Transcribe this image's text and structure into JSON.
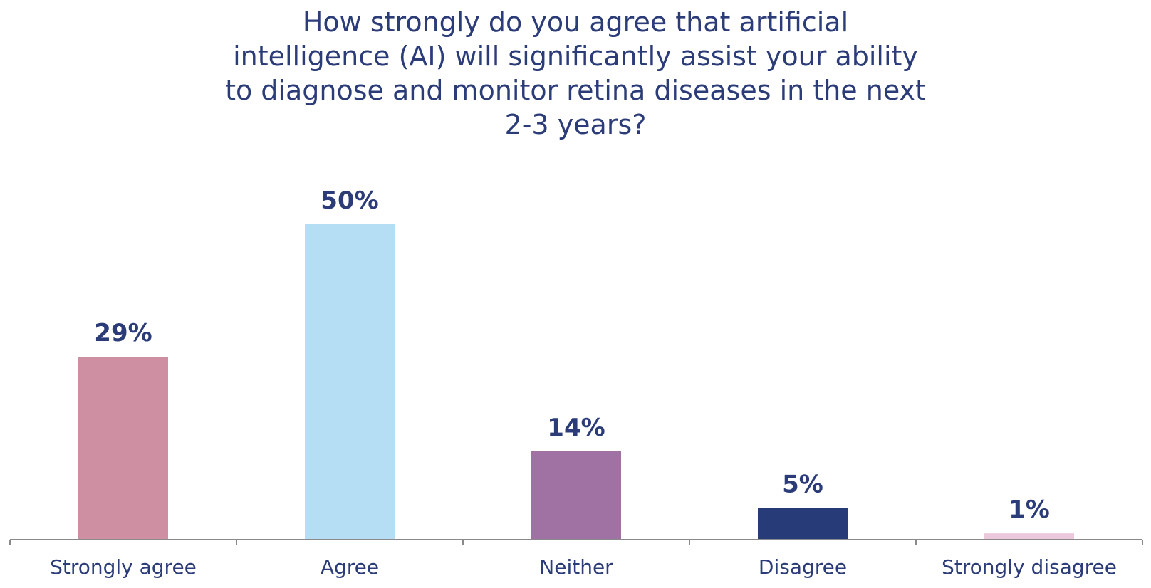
{
  "chart_data": {
    "type": "bar",
    "title_lines": [
      "How strongly do you agree that artificial",
      "intelligence (AI) will significantly assist your ability",
      "to diagnose and monitor retina diseases in the next",
      "2-3 years?"
    ],
    "categories": [
      "Strongly agree",
      "Agree",
      "Neither",
      "Disagree",
      "Strongly disagree"
    ],
    "values": [
      29,
      50,
      14,
      5,
      1
    ],
    "data_labels": [
      "29%",
      "50%",
      "14%",
      "5%",
      "1%"
    ],
    "colors": [
      "#CF8FA3",
      "#B5DDF3",
      "#A071A3",
      "#263B77",
      "#EBC8DC"
    ],
    "text_color": "#2B3C78",
    "axis_color": "#8A8A8A",
    "ylim": [
      0,
      50
    ],
    "grid": false,
    "legend": "none",
    "xlabel": "",
    "ylabel": ""
  }
}
